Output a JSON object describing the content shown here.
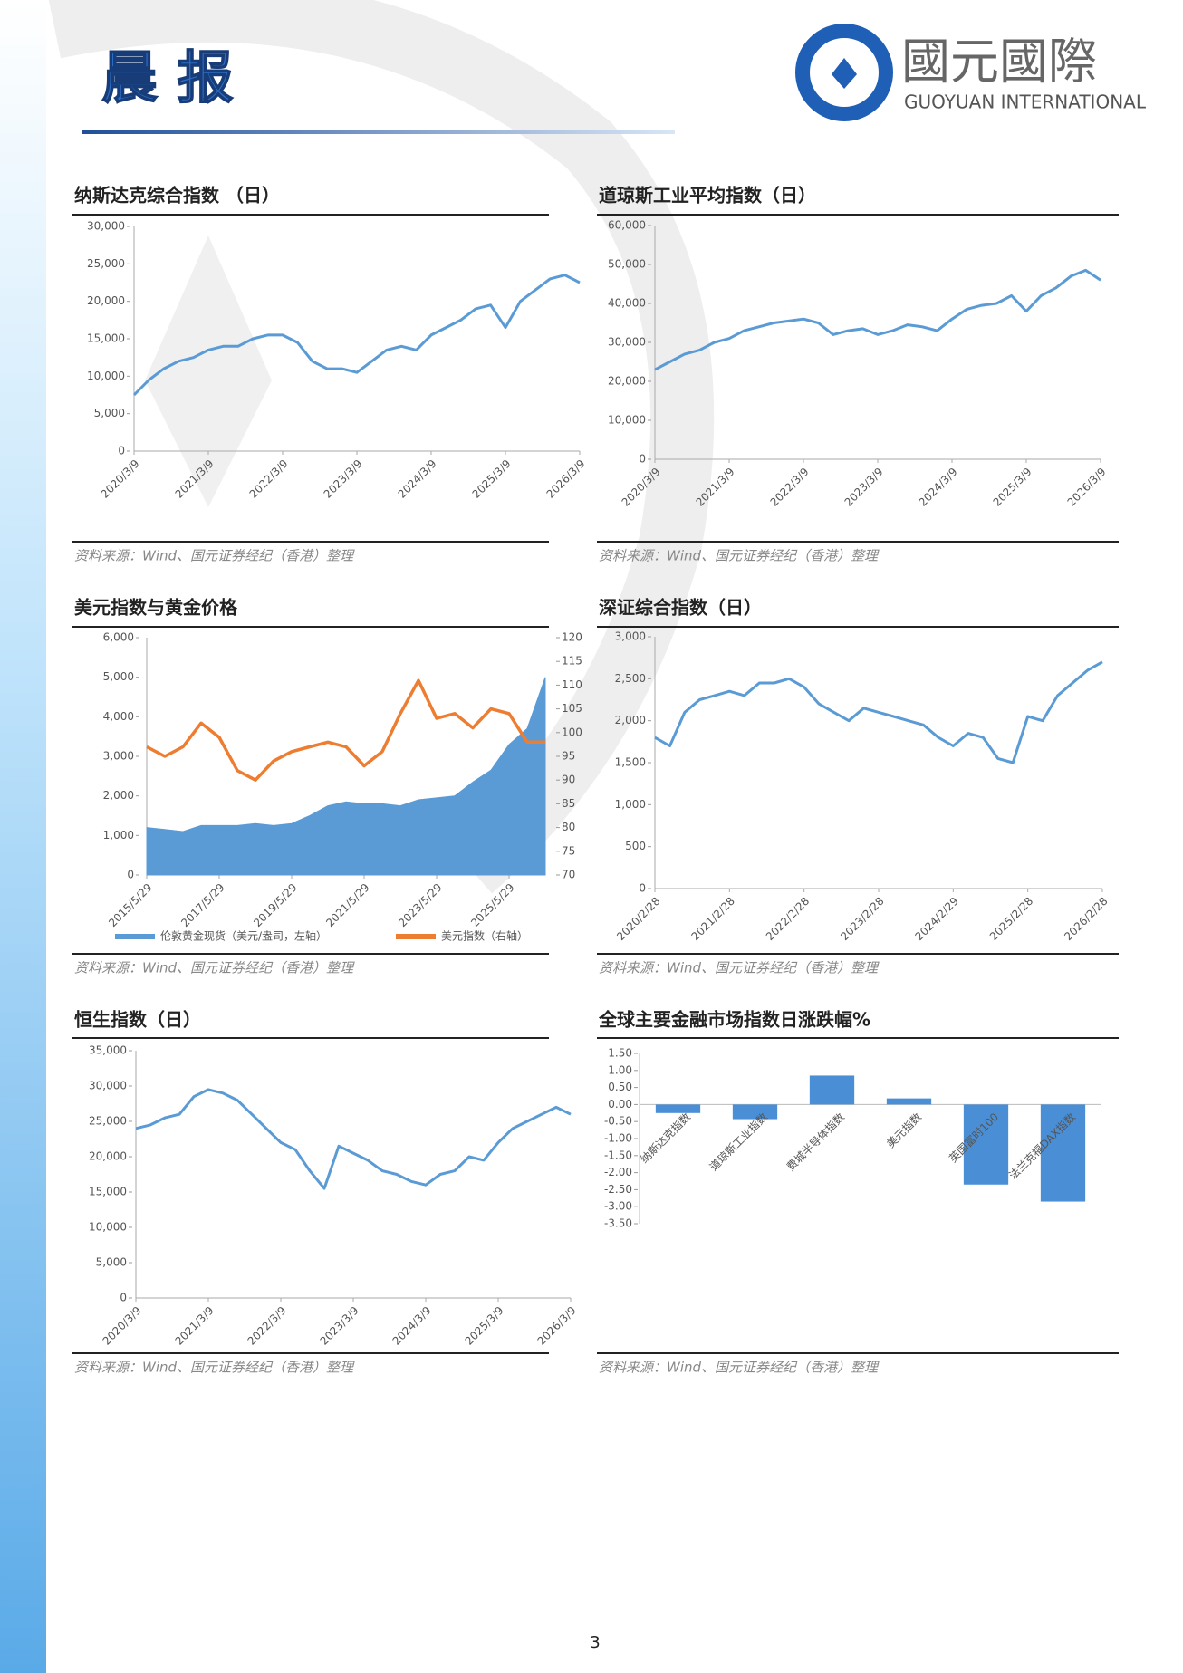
{
  "header": {
    "title": "晨 报",
    "logo_cn": "國元國際",
    "logo_en": "GUOYUAN INTERNATIONAL"
  },
  "chart_data": [
    {
      "type": "line",
      "title": "纳斯达克综合指数 （日）",
      "source": "资料来源：Wind、国元证券经纪（香港）整理",
      "categories": [
        "2020/3/9",
        null,
        null,
        null,
        null,
        "2021/3/9",
        null,
        null,
        null,
        null,
        "2022/3/9",
        null,
        null,
        null,
        null,
        "2023/3/9",
        null,
        null,
        null,
        null,
        "2024/3/9",
        null,
        null,
        null,
        null,
        "2025/3/9",
        null,
        null,
        null,
        null,
        "2026/3/9"
      ],
      "series": [
        {
          "name": "纳斯达克综合指数",
          "color": "#5b9bd5",
          "values": [
            7500,
            9500,
            11000,
            12000,
            12500,
            13500,
            14000,
            14000,
            15000,
            15500,
            15500,
            14500,
            12000,
            11000,
            11000,
            10500,
            12000,
            13500,
            14000,
            13500,
            15500,
            16500,
            17500,
            19000,
            19500,
            16500,
            20000,
            21500,
            23000,
            23500,
            22500
          ]
        }
      ],
      "ylim": [
        0,
        30000
      ],
      "yticks": [
        0,
        {
          "value": 5000,
          "label": "5,000"
        },
        {
          "value": 10000,
          "label": "10,000"
        },
        {
          "value": 15000,
          "label": "15,000"
        },
        {
          "value": 20000,
          "label": "20,000"
        },
        {
          "value": 25000,
          "label": "25,000"
        },
        {
          "value": 30000,
          "label": "30,000"
        }
      ]
    },
    {
      "type": "line",
      "title": "道琼斯工业平均指数（日）",
      "source": "资料来源：Wind、国元证券经纪（香港）整理",
      "categories": [
        "2020/3/9",
        null,
        null,
        null,
        null,
        "2021/3/9",
        null,
        null,
        null,
        null,
        "2022/3/9",
        null,
        null,
        null,
        null,
        "2023/3/9",
        null,
        null,
        null,
        null,
        "2024/3/9",
        null,
        null,
        null,
        null,
        "2025/3/9",
        null,
        null,
        null,
        null,
        "2026/3/9"
      ],
      "series": [
        {
          "name": "道琼斯工业平均指数",
          "color": "#5b9bd5",
          "values": [
            23000,
            25000,
            27000,
            28000,
            30000,
            31000,
            33000,
            34000,
            35000,
            35500,
            36000,
            35000,
            32000,
            33000,
            33500,
            32000,
            33000,
            34500,
            34000,
            33000,
            36000,
            38500,
            39500,
            40000,
            42000,
            38000,
            42000,
            44000,
            47000,
            48500,
            46000
          ]
        }
      ],
      "ylim": [
        0,
        60000
      ],
      "yticks": [
        0,
        {
          "value": 10000,
          "label": "10,000"
        },
        {
          "value": 20000,
          "label": "20,000"
        },
        {
          "value": 30000,
          "label": "30,000"
        },
        {
          "value": 40000,
          "label": "40,000"
        },
        {
          "value": 50000,
          "label": "50,000"
        },
        {
          "value": 60000,
          "label": "60,000"
        }
      ]
    },
    {
      "type": "combo",
      "title": "美元指数与黄金价格",
      "source": "资料来源：Wind、国元证券经纪（香港）整理",
      "categories": [
        "2015/5/29",
        null,
        null,
        null,
        "2017/5/29",
        null,
        null,
        null,
        "2019/5/29",
        null,
        null,
        null,
        "2021/5/29",
        null,
        null,
        null,
        "2023/5/29",
        null,
        null,
        null,
        "2025/5/29",
        null,
        null
      ],
      "series": [
        {
          "name": "伦敦黄金现货（美元/盎司，左轴）",
          "color": "#5b9bd5",
          "mark": "area",
          "values": [
            1200,
            1150,
            1100,
            1250,
            1250,
            1250,
            1300,
            1250,
            1300,
            1500,
            1750,
            1850,
            1800,
            1800,
            1750,
            1900,
            1950,
            2000,
            2350,
            2650,
            3300,
            3700,
            5000
          ]
        },
        {
          "name": "美元指数（右轴）",
          "color": "#ed7d31",
          "mark": "line",
          "axis": "y2",
          "values": [
            97,
            95,
            97,
            102,
            99,
            92,
            90,
            94,
            96,
            97,
            98,
            97,
            93,
            96,
            104,
            111,
            103,
            104,
            101,
            105,
            104,
            98,
            98
          ]
        }
      ],
      "ylim": [
        0,
        6000
      ],
      "yticks": [
        0,
        {
          "value": 1000,
          "label": "1,000"
        },
        {
          "value": 2000,
          "label": "2,000"
        },
        {
          "value": 3000,
          "label": "3,000"
        },
        {
          "value": 4000,
          "label": "4,000"
        },
        {
          "value": 5000,
          "label": "5,000"
        },
        {
          "value": 6000,
          "label": "6,000"
        }
      ],
      "y2lim": [
        70,
        120
      ],
      "y2ticks": [
        70,
        75,
        80,
        85,
        90,
        95,
        100,
        105,
        110,
        115,
        120
      ]
    },
    {
      "type": "line",
      "title": "深证综合指数（日）",
      "source": "资料来源：Wind、国元证券经纪（香港）整理",
      "categories": [
        "2020/2/28",
        null,
        null,
        null,
        null,
        "2021/2/28",
        null,
        null,
        null,
        null,
        "2022/2/28",
        null,
        null,
        null,
        null,
        "2023/2/28",
        null,
        null,
        null,
        null,
        "2024/2/29",
        null,
        null,
        null,
        null,
        "2025/2/28",
        null,
        null,
        null,
        null,
        "2026/2/28"
      ],
      "series": [
        {
          "name": "深证综合指数",
          "color": "#5b9bd5",
          "values": [
            1800,
            1700,
            2100,
            2250,
            2300,
            2350,
            2300,
            2450,
            2450,
            2500,
            2400,
            2200,
            2100,
            2000,
            2150,
            2100,
            2050,
            2000,
            1950,
            1800,
            1700,
            1850,
            1800,
            1550,
            1500,
            2050,
            2000,
            2300,
            2450,
            2600,
            2700
          ]
        }
      ],
      "ylim": [
        0,
        3000
      ],
      "yticks": [
        0,
        500,
        {
          "value": 1000,
          "label": "1,000"
        },
        {
          "value": 1500,
          "label": "1,500"
        },
        {
          "value": 2000,
          "label": "2,000"
        },
        {
          "value": 2500,
          "label": "2,500"
        },
        {
          "value": 3000,
          "label": "3,000"
        }
      ]
    },
    {
      "type": "line",
      "title": "恒生指数（日）",
      "source": "资料来源：Wind、国元证券经纪（香港）整理",
      "categories": [
        "2020/3/9",
        null,
        null,
        null,
        null,
        "2021/3/9",
        null,
        null,
        null,
        null,
        "2022/3/9",
        null,
        null,
        null,
        null,
        "2023/3/9",
        null,
        null,
        null,
        null,
        "2024/3/9",
        null,
        null,
        null,
        null,
        "2025/3/9",
        null,
        null,
        null,
        null,
        "2026/3/9"
      ],
      "series": [
        {
          "name": "恒生指数",
          "color": "#5b9bd5",
          "values": [
            24000,
            24500,
            25500,
            26000,
            28500,
            29500,
            29000,
            28000,
            26000,
            24000,
            22000,
            21000,
            18000,
            15500,
            21500,
            20500,
            19500,
            18000,
            17500,
            16500,
            16000,
            17500,
            18000,
            20000,
            19500,
            22000,
            24000,
            25000,
            26000,
            27000,
            26000
          ]
        }
      ],
      "ylim": [
        0,
        35000
      ],
      "yticks": [
        0,
        {
          "value": 5000,
          "label": "5,000"
        },
        {
          "value": 10000,
          "label": "10,000"
        },
        {
          "value": 15000,
          "label": "15,000"
        },
        {
          "value": 20000,
          "label": "20,000"
        },
        {
          "value": 25000,
          "label": "25,000"
        },
        {
          "value": 30000,
          "label": "30,000"
        },
        {
          "value": 35000,
          "label": "35,000"
        }
      ]
    },
    {
      "type": "bar",
      "title": "全球主要金融市场指数日涨跌幅%",
      "source": "资料来源：Wind、国元证券经纪（香港）整理",
      "categories": [
        "纳斯达克指数",
        "道琼斯工业指数",
        "费城半导体指数",
        "美元指数",
        "英国富时100",
        "法兰克福DAX指数"
      ],
      "values": [
        -0.25,
        -0.43,
        0.85,
        0.18,
        -2.35,
        -2.85
      ],
      "color": "#4a8fd6",
      "ylim": [
        -3.5,
        1.5
      ],
      "yticks": [
        {
          "value": 1.5,
          "label": "1.50"
        },
        {
          "value": 1,
          "label": "1.00"
        },
        {
          "value": 0.5,
          "label": "0.50"
        },
        {
          "value": 0,
          "label": "0.00"
        },
        {
          "value": -0.5,
          "label": "-0.50"
        },
        {
          "value": -1,
          "label": "-1.00"
        },
        {
          "value": -1.5,
          "label": "-1.50"
        },
        {
          "value": -2,
          "label": "-2.00"
        },
        {
          "value": -2.5,
          "label": "-2.50"
        },
        {
          "value": -3,
          "label": "-3.00"
        },
        {
          "value": -3.5,
          "label": "-3.50"
        }
      ]
    }
  ],
  "page_number": 3
}
